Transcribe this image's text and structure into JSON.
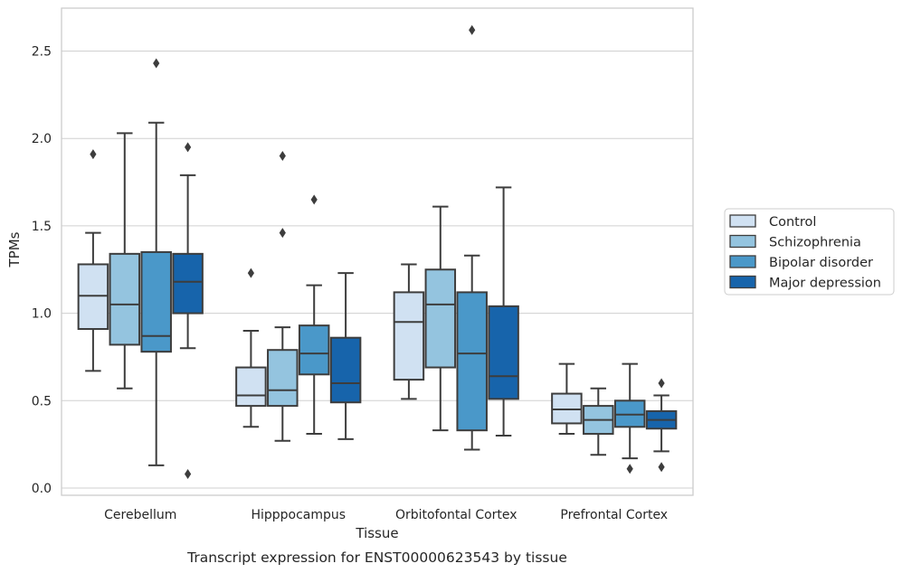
{
  "chart_data": {
    "type": "box",
    "caption": "Transcript expression for ENST00000623543 by tissue",
    "xlabel": "Tissue",
    "ylabel": "TPMs",
    "ylim": [
      -0.04,
      2.76
    ],
    "yticks": [
      "0.0",
      "0.5",
      "1.0",
      "1.5",
      "2.0",
      "2.5"
    ],
    "grid": "horizontal",
    "legend_position": "right",
    "categories": [
      "Cerebellum",
      "Hipppocampus",
      "Orbitofontal Cortex",
      "Prefrontal Cortex"
    ],
    "series": [
      {
        "name": "Control",
        "color": "#d0e1f2",
        "boxes": [
          {
            "whislo": 0.67,
            "q1": 0.91,
            "med": 1.1,
            "q3": 1.28,
            "whishi": 1.46,
            "fliers": [
              1.91
            ]
          },
          {
            "whislo": 0.35,
            "q1": 0.47,
            "med": 0.53,
            "q3": 0.69,
            "whishi": 0.9,
            "fliers": [
              1.23
            ]
          },
          {
            "whislo": 0.51,
            "q1": 0.62,
            "med": 0.95,
            "q3": 1.12,
            "whishi": 1.28,
            "fliers": []
          },
          {
            "whislo": 0.31,
            "q1": 0.37,
            "med": 0.45,
            "q3": 0.54,
            "whishi": 0.71,
            "fliers": []
          }
        ]
      },
      {
        "name": "Schizophrenia",
        "color": "#94c4df",
        "boxes": [
          {
            "whislo": 0.57,
            "q1": 0.82,
            "med": 1.05,
            "q3": 1.34,
            "whishi": 2.03,
            "fliers": []
          },
          {
            "whislo": 0.27,
            "q1": 0.47,
            "med": 0.56,
            "q3": 0.79,
            "whishi": 0.92,
            "fliers": [
              1.46,
              1.9
            ]
          },
          {
            "whislo": 0.33,
            "q1": 0.69,
            "med": 1.05,
            "q3": 1.25,
            "whishi": 1.61,
            "fliers": []
          },
          {
            "whislo": 0.19,
            "q1": 0.31,
            "med": 0.39,
            "q3": 0.47,
            "whishi": 0.57,
            "fliers": []
          }
        ]
      },
      {
        "name": "Bipolar disorder",
        "color": "#4a98c9",
        "boxes": [
          {
            "whislo": 0.13,
            "q1": 0.78,
            "med": 0.87,
            "q3": 1.35,
            "whishi": 2.09,
            "fliers": [
              2.43
            ]
          },
          {
            "whislo": 0.31,
            "q1": 0.65,
            "med": 0.77,
            "q3": 0.93,
            "whishi": 1.16,
            "fliers": [
              1.65
            ]
          },
          {
            "whislo": 0.22,
            "q1": 0.33,
            "med": 0.77,
            "q3": 1.12,
            "whishi": 1.33,
            "fliers": [
              2.62
            ]
          },
          {
            "whislo": 0.17,
            "q1": 0.35,
            "med": 0.42,
            "q3": 0.5,
            "whishi": 0.71,
            "fliers": [
              0.11
            ]
          }
        ]
      },
      {
        "name": "Major depression",
        "color": "#1764ab",
        "boxes": [
          {
            "whislo": 0.8,
            "q1": 1.0,
            "med": 1.18,
            "q3": 1.34,
            "whishi": 1.79,
            "fliers": [
              0.08,
              1.95
            ]
          },
          {
            "whislo": 0.28,
            "q1": 0.49,
            "med": 0.6,
            "q3": 0.86,
            "whishi": 1.23,
            "fliers": []
          },
          {
            "whislo": 0.3,
            "q1": 0.51,
            "med": 0.64,
            "q3": 1.04,
            "whishi": 1.72,
            "fliers": []
          },
          {
            "whislo": 0.21,
            "q1": 0.34,
            "med": 0.39,
            "q3": 0.44,
            "whishi": 0.53,
            "fliers": [
              0.12,
              0.6
            ]
          }
        ]
      }
    ]
  }
}
